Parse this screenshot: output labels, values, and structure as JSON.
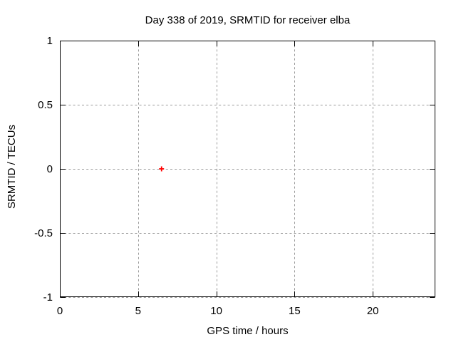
{
  "chart_data": {
    "type": "scatter",
    "title": "Day 338 of 2019, SRMTID for receiver elba",
    "xlabel": "GPS time / hours",
    "ylabel": "SRMTID / TECUs",
    "xlim": [
      0,
      24
    ],
    "ylim": [
      -1,
      1
    ],
    "xticks": [
      0,
      5,
      10,
      15,
      20
    ],
    "xtick_labels": [
      "0",
      "5",
      "10",
      "15",
      "20"
    ],
    "yticks": [
      -1,
      -0.5,
      0,
      0.5,
      1
    ],
    "ytick_labels": [
      "-1",
      "-0.5",
      "0",
      "0.5",
      "1"
    ],
    "grid": true,
    "legend_position": "none",
    "colors": {
      "axis": "#000000",
      "grid": "#9a9a9a",
      "background": "#ffffff"
    },
    "series": [
      {
        "marker": "plus",
        "color": "#ff0000",
        "points": [
          [
            6.5,
            0.0
          ]
        ]
      }
    ]
  }
}
